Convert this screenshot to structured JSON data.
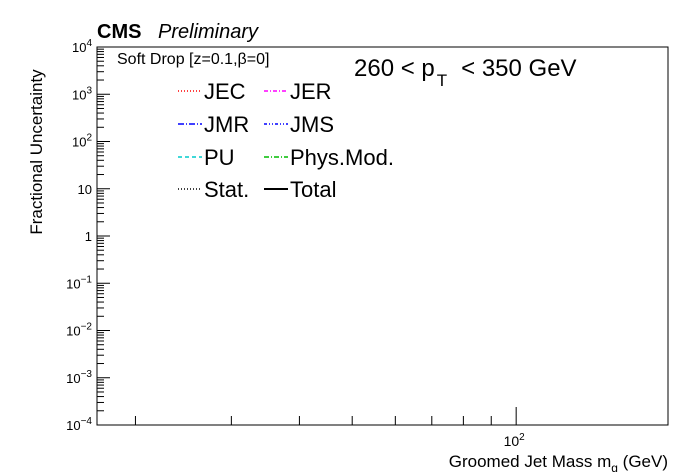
{
  "header": {
    "experiment": "CMS",
    "status": "Preliminary"
  },
  "chart_data": {
    "type": "line",
    "title": "",
    "xlabel": "Groomed Jet Mass m",
    "xlabel_sub": "g",
    "xlabel_unit": " (GeV)",
    "ylabel": "Fractional Uncertainty",
    "x_scale": "log",
    "y_scale": "log",
    "xlim": [
      17,
      190
    ],
    "ylim": [
      0.0001,
      10000
    ],
    "x_major_tick_labels": [
      {
        "base": "10",
        "exp": "2"
      }
    ],
    "y_tick_labels": [
      {
        "value": 0.0001,
        "base": "10",
        "exp": "−4"
      },
      {
        "value": 0.001,
        "base": "10",
        "exp": "−3"
      },
      {
        "value": 0.01,
        "base": "10",
        "exp": "−2"
      },
      {
        "value": 0.1,
        "base": "10",
        "exp": "−1"
      },
      {
        "value": 1,
        "base": "1",
        "exp": ""
      },
      {
        "value": 10,
        "base": "10",
        "exp": ""
      },
      {
        "value": 100,
        "base": "10",
        "exp": "2"
      },
      {
        "value": 1000,
        "base": "10",
        "exp": "3"
      },
      {
        "value": 10000,
        "base": "10",
        "exp": "4"
      }
    ],
    "annotations": {
      "groomer": "Soft Drop [z=0.1,",
      "groomer_beta": "β",
      "groomer_tail": "=0]",
      "pt_low": "260 <  p",
      "pt_sub": "T",
      "pt_high": "< 350 GeV"
    },
    "legend_position": "top-left",
    "series": [
      {
        "name": "JEC",
        "color": "#ff0000",
        "dash": "1,2",
        "values": []
      },
      {
        "name": "JER",
        "color": "#ff00ff",
        "dash": "4,2,1,2",
        "values": []
      },
      {
        "name": "JMR",
        "color": "#0000ff",
        "dash": "6,2,1,2",
        "values": []
      },
      {
        "name": "JMS",
        "color": "#0000ff",
        "dash": "3,2,1,2,1,2",
        "values": []
      },
      {
        "name": "PU",
        "color": "#00cccc",
        "dash": "4,3",
        "values": []
      },
      {
        "name": "Phys.Mod.",
        "color": "#00bb00",
        "dash": "5,2,1,2",
        "values": []
      },
      {
        "name": "Stat.",
        "color": "#000000",
        "dash": "1,2",
        "values": []
      },
      {
        "name": "Total",
        "color": "#000000",
        "dash": "",
        "values": []
      }
    ]
  }
}
